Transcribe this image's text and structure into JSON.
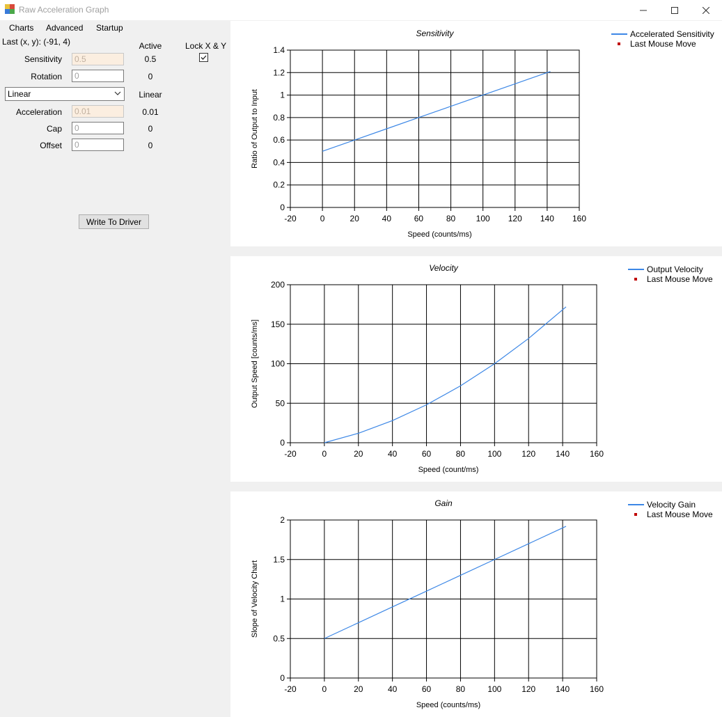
{
  "window": {
    "title": "Raw Acceleration Graph"
  },
  "menu": [
    "Charts",
    "Advanced",
    "Startup"
  ],
  "left": {
    "last_xy": "Last (x, y): (-91, 4)",
    "active_header": "Active",
    "lock_label": "Lock X & Y",
    "lock_checked": true,
    "sensitivity": {
      "label": "Sensitivity",
      "value": "0.5",
      "active": "0.5"
    },
    "rotation": {
      "label": "Rotation",
      "value": "0",
      "active": "0"
    },
    "accel_type": {
      "selected": "Linear",
      "active": "Linear"
    },
    "acceleration": {
      "label": "Acceleration",
      "value": "0.01",
      "active": "0.01"
    },
    "cap": {
      "label": "Cap",
      "value": "0",
      "active": "0"
    },
    "offset": {
      "label": "Offset",
      "value": "0",
      "active": "0"
    },
    "write_button": "Write To Driver"
  },
  "colors": {
    "series": "#3c87e6",
    "marker": "#c00000"
  },
  "chart_data": [
    {
      "type": "line",
      "title": "Sensitivity",
      "xlabel": "Speed (counts/ms)",
      "ylabel": "Ratio of Output to Input",
      "xlim": [
        -20,
        160
      ],
      "ylim": [
        0,
        1.4
      ],
      "xticks": [
        "-20",
        "0",
        "20",
        "40",
        "60",
        "80",
        "100",
        "120",
        "140",
        "160"
      ],
      "yticks": [
        "0",
        "0.2",
        "0.4",
        "0.6",
        "0.8",
        "1",
        "1.2",
        "1.4"
      ],
      "legend": [
        "Accelerated Sensitivity",
        "Last Mouse Move"
      ],
      "series": [
        {
          "name": "Accelerated Sensitivity",
          "x": [
            0,
            20,
            40,
            60,
            80,
            100,
            120,
            142
          ],
          "y": [
            0.5,
            0.6,
            0.7,
            0.8,
            0.9,
            1.0,
            1.1,
            1.21
          ]
        }
      ]
    },
    {
      "type": "line",
      "title": "Velocity",
      "xlabel": "Speed (count/ms)",
      "ylabel": "Output Speed [counts/ms]",
      "xlim": [
        -20,
        160
      ],
      "ylim": [
        0,
        200
      ],
      "xticks": [
        "-20",
        "0",
        "20",
        "40",
        "60",
        "80",
        "100",
        "120",
        "140",
        "160"
      ],
      "yticks": [
        "0",
        "50",
        "100",
        "150",
        "200"
      ],
      "legend": [
        "Output Velocity",
        "Last Mouse Move"
      ],
      "series": [
        {
          "name": "Output Velocity",
          "x": [
            0,
            20,
            40,
            60,
            80,
            100,
            120,
            142
          ],
          "y": [
            0,
            12,
            28,
            48,
            72,
            100,
            132,
            172
          ]
        }
      ]
    },
    {
      "type": "line",
      "title": "Gain",
      "xlabel": "Speed (counts/ms)",
      "ylabel": "Slope of Velocity Chart",
      "xlim": [
        -20,
        160
      ],
      "ylim": [
        0,
        2
      ],
      "xticks": [
        "-20",
        "0",
        "20",
        "40",
        "60",
        "80",
        "100",
        "120",
        "140",
        "160"
      ],
      "yticks": [
        "0",
        "0.5",
        "1",
        "1.5",
        "2"
      ],
      "legend": [
        "Velocity Gain",
        "Last Mouse Move"
      ],
      "series": [
        {
          "name": "Velocity Gain",
          "x": [
            0,
            20,
            40,
            60,
            80,
            100,
            120,
            142
          ],
          "y": [
            0.5,
            0.7,
            0.9,
            1.1,
            1.3,
            1.5,
            1.7,
            1.92
          ]
        }
      ]
    }
  ]
}
